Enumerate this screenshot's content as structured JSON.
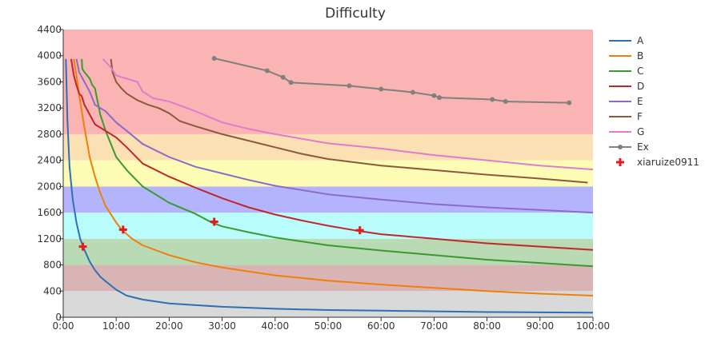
{
  "chart_data": {
    "type": "line",
    "title": "Difficulty",
    "xlabel": "",
    "ylabel": "",
    "xlim": [
      0,
      100
    ],
    "ylim": [
      0,
      4400
    ],
    "x_ticks": [
      0,
      10,
      20,
      30,
      40,
      50,
      60,
      70,
      80,
      90,
      100
    ],
    "x_tick_labels": [
      "0:00",
      "10:00",
      "20:00",
      "30:00",
      "40:00",
      "50:00",
      "60:00",
      "70:00",
      "80:00",
      "90:00",
      "100:00"
    ],
    "y_ticks": [
      0,
      400,
      800,
      1200,
      1600,
      2000,
      2400,
      2800,
      3200,
      3600,
      4000,
      4400
    ],
    "y_tick_labels": [
      "0",
      "400",
      "800",
      "1200",
      "1600",
      "2000",
      "2400",
      "2800",
      "3200",
      "3600",
      "4000",
      "4400"
    ],
    "grid": false,
    "legend": "right",
    "bands": [
      {
        "from": 0,
        "to": 400,
        "color": "#d9d9d9"
      },
      {
        "from": 400,
        "to": 800,
        "color": "#d8b4b4"
      },
      {
        "from": 800,
        "to": 1200,
        "color": "#b8dab4"
      },
      {
        "from": 1200,
        "to": 1600,
        "color": "#b9fcfb"
      },
      {
        "from": 1600,
        "to": 2000,
        "color": "#b4b4fc"
      },
      {
        "from": 2000,
        "to": 2400,
        "color": "#fcfcb4"
      },
      {
        "from": 2400,
        "to": 2800,
        "color": "#fbe0b4"
      },
      {
        "from": 2800,
        "to": 4400,
        "color": "#fbb4b4"
      }
    ],
    "series": [
      {
        "name": "A",
        "color": "#2f6fb5",
        "x": [
          0.5,
          0.8,
          1.2,
          1.8,
          2.5,
          3.2,
          4,
          5,
          6,
          7,
          8,
          10,
          12,
          15,
          20,
          30,
          40,
          50,
          60,
          70,
          80,
          90,
          100
        ],
        "y": [
          3950,
          3000,
          2300,
          1800,
          1450,
          1200,
          1030,
          850,
          720,
          620,
          550,
          420,
          330,
          270,
          210,
          160,
          130,
          110,
          100,
          90,
          80,
          75,
          70
        ]
      },
      {
        "name": "B",
        "color": "#f07f09",
        "x": [
          2,
          2.5,
          3,
          4,
          5,
          6,
          7,
          8,
          10,
          11,
          13,
          15,
          20,
          25,
          30,
          40,
          50,
          60,
          70,
          80,
          90,
          100
        ],
        "y": [
          3950,
          3700,
          3400,
          2900,
          2450,
          2150,
          1900,
          1700,
          1450,
          1340,
          1200,
          1100,
          950,
          840,
          760,
          640,
          560,
          500,
          450,
          400,
          360,
          330
        ]
      },
      {
        "name": "C",
        "color": "#3a9a30",
        "x": [
          3.5,
          3.6,
          4,
          5,
          5.5,
          6,
          6.5,
          7,
          8,
          9,
          10,
          12,
          15,
          20,
          25,
          28,
          30,
          35,
          40,
          50,
          60,
          70,
          80,
          90,
          100
        ],
        "y": [
          3950,
          3800,
          3750,
          3650,
          3550,
          3500,
          3300,
          3100,
          2850,
          2650,
          2450,
          2250,
          2000,
          1750,
          1580,
          1450,
          1390,
          1300,
          1220,
          1100,
          1020,
          950,
          880,
          830,
          780
        ]
      },
      {
        "name": "D",
        "color": "#c0272d",
        "x": [
          1.5,
          2,
          2.5,
          3,
          3.5,
          4,
          5,
          6,
          8,
          10,
          12,
          15,
          20,
          25,
          30,
          35,
          40,
          45,
          50,
          55,
          60,
          70,
          80,
          90,
          100
        ],
        "y": [
          3950,
          3700,
          3550,
          3420,
          3380,
          3250,
          3100,
          2950,
          2850,
          2750,
          2600,
          2350,
          2150,
          1980,
          1820,
          1680,
          1570,
          1480,
          1400,
          1330,
          1270,
          1200,
          1130,
          1080,
          1030
        ]
      },
      {
        "name": "E",
        "color": "#8c6bc8",
        "x": [
          2.5,
          3,
          4,
          5,
          6,
          8,
          10,
          12,
          15,
          20,
          25,
          30,
          35,
          40,
          50,
          60,
          70,
          80,
          90,
          100
        ],
        "y": [
          3950,
          3750,
          3600,
          3450,
          3250,
          3150,
          2980,
          2850,
          2650,
          2450,
          2300,
          2200,
          2100,
          2010,
          1880,
          1800,
          1730,
          1680,
          1640,
          1600
        ]
      },
      {
        "name": "F",
        "color": "#8b5a3c",
        "x": [
          9,
          9.3,
          10,
          11,
          12,
          14,
          16,
          18,
          20,
          22,
          25,
          30,
          35,
          40,
          45,
          50,
          60,
          70,
          80,
          90,
          99
        ],
        "y": [
          3950,
          3750,
          3600,
          3500,
          3420,
          3320,
          3250,
          3200,
          3120,
          3000,
          2920,
          2800,
          2700,
          2600,
          2500,
          2420,
          2320,
          2250,
          2180,
          2120,
          2060
        ]
      },
      {
        "name": "G",
        "color": "#e07bd0",
        "x": [
          7.5,
          9,
          10,
          12,
          14,
          15,
          17,
          20,
          25,
          30,
          35,
          40,
          50,
          60,
          70,
          80,
          90,
          100
        ],
        "y": [
          3950,
          3820,
          3700,
          3650,
          3600,
          3450,
          3350,
          3300,
          3150,
          2980,
          2880,
          2800,
          2660,
          2580,
          2480,
          2400,
          2320,
          2260
        ]
      },
      {
        "name": "Ex",
        "color": "#808080",
        "markers": true,
        "x": [
          28.5,
          38.5,
          41.5,
          43,
          54,
          60,
          66,
          70,
          71,
          81,
          83.5,
          95.5
        ],
        "y": [
          3960,
          3770,
          3670,
          3590,
          3540,
          3490,
          3440,
          3390,
          3360,
          3330,
          3300,
          3280
        ]
      }
    ],
    "points": {
      "name": "xiaruize0911",
      "color": "#e41a1c",
      "x": [
        3.7,
        11.3,
        28.5,
        56
      ],
      "y": [
        1080,
        1340,
        1460,
        1330
      ]
    }
  }
}
